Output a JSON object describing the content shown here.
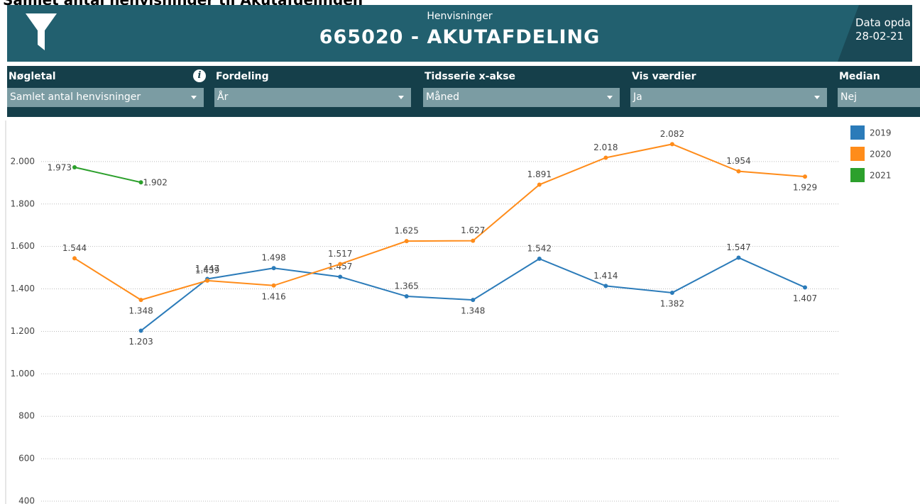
{
  "page_title": "Samlet antal henvisninger til Akutafdelingen",
  "header": {
    "subtitle": "Henvisninger",
    "title": "665020 - AKUTAFDELING",
    "updated_label": "Data opda",
    "updated_date": "28-02-21"
  },
  "filters": [
    {
      "label": "Nøgletal",
      "value": "Samlet antal henvisninger"
    },
    {
      "label": "Fordeling",
      "value": "År"
    },
    {
      "label": "Tidsserie x-akse",
      "value": "Måned"
    },
    {
      "label": "Vis værdier",
      "value": "Ja"
    },
    {
      "label": "Median",
      "value": "Nej"
    }
  ],
  "chart_data": {
    "type": "line",
    "categories": [
      null,
      null,
      null,
      null,
      null,
      null,
      null,
      null,
      null,
      null,
      null,
      null
    ],
    "ylim": [
      400,
      2200
    ],
    "yticks": [
      400,
      600,
      800,
      {
        "value": 1000,
        "label": "1.000"
      },
      {
        "value": 1200,
        "label": "1.200"
      },
      {
        "value": 1400,
        "label": "1.400"
      },
      {
        "value": 1600,
        "label": "1.600"
      },
      {
        "value": 1800,
        "label": "1.800"
      },
      {
        "value": 2000,
        "label": "2.000"
      }
    ],
    "grid": true,
    "legend": "right",
    "series": [
      {
        "name": "2019",
        "color": "#2b7bb9",
        "values": [
          null,
          1203,
          1447,
          1498,
          1457,
          1365,
          1348,
          1542,
          1414,
          1382,
          1547,
          1407
        ],
        "value_labels": [
          null,
          "1.203",
          "1.447",
          "1.498",
          "1.457",
          "1.365",
          "1.348",
          "1.542",
          "1.414",
          "1.382",
          "1.547",
          "1.407"
        ]
      },
      {
        "name": "2020",
        "color": "#ff8c1a",
        "values": [
          1544,
          1348,
          1439,
          1416,
          1517,
          1625,
          1627,
          1891,
          2018,
          2082,
          1954,
          1929
        ],
        "value_labels": [
          "1.544",
          "1.348",
          "1.439",
          "1.416",
          "1.517",
          "1.625",
          "1.627",
          "1.891",
          "2.018",
          "2.082",
          "1.954",
          "1.929"
        ]
      },
      {
        "name": "2021",
        "color": "#2ca02c",
        "values": [
          1973,
          1902,
          null,
          null,
          null,
          null,
          null,
          null,
          null,
          null,
          null,
          null
        ],
        "value_labels": [
          "1.973",
          "1.902",
          null,
          null,
          null,
          null,
          null,
          null,
          null,
          null,
          null,
          null
        ]
      }
    ]
  }
}
